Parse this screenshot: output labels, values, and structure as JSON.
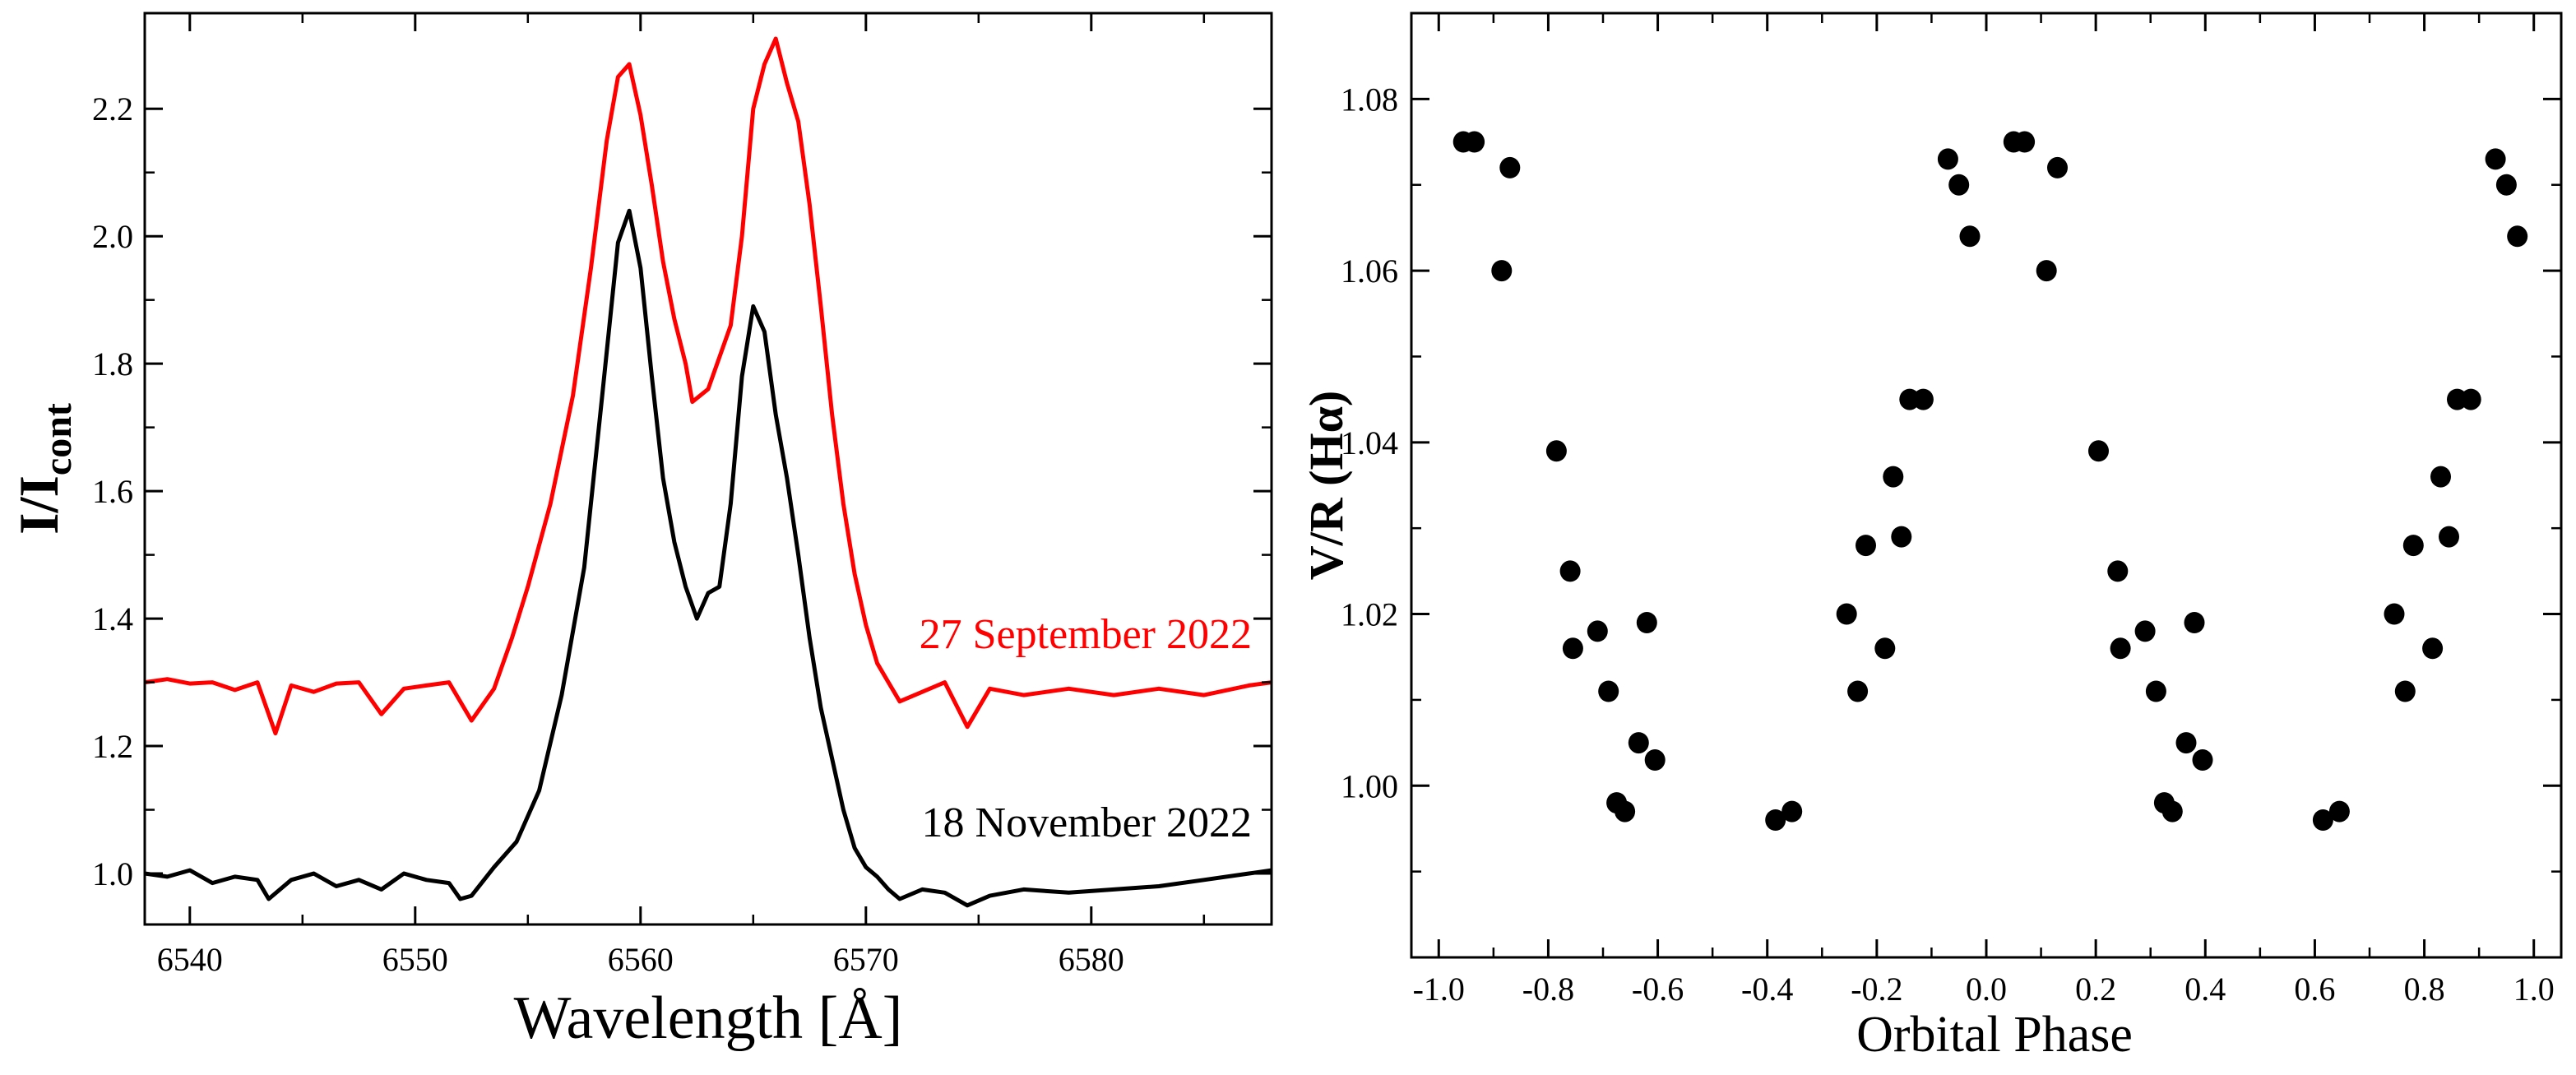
{
  "chart_data": [
    {
      "type": "line",
      "xlabel": "Wavelength [Å]",
      "ylabel_main": "I/I",
      "ylabel_sub": "cont",
      "xlim": [
        6538,
        6588
      ],
      "ylim": [
        0.92,
        2.35
      ],
      "xticks": [
        6540,
        6550,
        6560,
        6570,
        6580
      ],
      "xtick_labels": [
        "6540",
        "6550",
        "6560",
        "6570",
        "6580"
      ],
      "yticks": [
        1.0,
        1.2,
        1.4,
        1.6,
        1.8,
        2.0,
        2.2
      ],
      "ytick_labels": [
        "1.0",
        "1.2",
        "1.4",
        "1.6",
        "1.8",
        "2.0",
        "2.2"
      ],
      "grid": false,
      "series": [
        {
          "name": "27 September 2022",
          "color": "#ff0000",
          "x": [
            6538,
            6539,
            6540,
            6541,
            6542,
            6543,
            6543.8,
            6544.5,
            6545.5,
            6546.5,
            6547.5,
            6548.5,
            6549.5,
            6550.5,
            6551.5,
            6552.5,
            6553.5,
            6554.3,
            6555,
            6556,
            6557,
            6557.8,
            6558.5,
            6559,
            6559.5,
            6560,
            6560.5,
            6561,
            6561.5,
            6562,
            6562.3,
            6563,
            6564,
            6564.5,
            6565,
            6565.5,
            6566,
            6566.5,
            6567,
            6567.5,
            6568,
            6568.5,
            6569,
            6569.5,
            6570,
            6570.5,
            6571,
            6571.5,
            6572.5,
            6573.5,
            6574.5,
            6575.5,
            6577,
            6579,
            6581,
            6583,
            6585,
            6587,
            6588
          ],
          "y": [
            1.3,
            1.305,
            1.298,
            1.3,
            1.288,
            1.3,
            1.22,
            1.295,
            1.285,
            1.298,
            1.3,
            1.25,
            1.29,
            1.295,
            1.3,
            1.24,
            1.29,
            1.37,
            1.45,
            1.58,
            1.75,
            1.95,
            2.15,
            2.25,
            2.27,
            2.19,
            2.08,
            1.96,
            1.87,
            1.8,
            1.74,
            1.76,
            1.86,
            2.0,
            2.2,
            2.27,
            2.31,
            2.24,
            2.18,
            2.05,
            1.89,
            1.72,
            1.58,
            1.47,
            1.39,
            1.33,
            1.3,
            1.27,
            1.285,
            1.3,
            1.23,
            1.29,
            1.28,
            1.29,
            1.28,
            1.29,
            1.28,
            1.295,
            1.3
          ]
        },
        {
          "name": "18 November 2022",
          "color": "#000000",
          "x": [
            6538,
            6539,
            6540,
            6541,
            6542,
            6543,
            6543.5,
            6544.5,
            6545.5,
            6546.5,
            6547.5,
            6548.5,
            6549.5,
            6550.5,
            6551.5,
            6552,
            6552.5,
            6553.5,
            6554.5,
            6555.5,
            6556.5,
            6557.5,
            6558.3,
            6559,
            6559.5,
            6560,
            6560.5,
            6561,
            6561.5,
            6562,
            6562.5,
            6563,
            6563.5,
            6564,
            6564.5,
            6565,
            6565.5,
            6566,
            6566.5,
            6567,
            6567.5,
            6568,
            6568.5,
            6569,
            6569.5,
            6570,
            6570.5,
            6571,
            6571.5,
            6572.5,
            6573.5,
            6574.5,
            6575.5,
            6577,
            6579,
            6581,
            6583,
            6585,
            6587,
            6588
          ],
          "y": [
            1.0,
            0.995,
            1.005,
            0.985,
            0.995,
            0.99,
            0.96,
            0.99,
            1.0,
            0.98,
            0.99,
            0.975,
            1.0,
            0.99,
            0.985,
            0.96,
            0.965,
            1.01,
            1.05,
            1.13,
            1.28,
            1.48,
            1.75,
            1.99,
            2.04,
            1.95,
            1.78,
            1.62,
            1.52,
            1.45,
            1.4,
            1.44,
            1.45,
            1.58,
            1.78,
            1.89,
            1.85,
            1.72,
            1.62,
            1.5,
            1.37,
            1.26,
            1.18,
            1.1,
            1.04,
            1.01,
            0.995,
            0.975,
            0.96,
            0.975,
            0.97,
            0.95,
            0.965,
            0.975,
            0.97,
            0.975,
            0.98,
            0.99,
            1.0,
            1.005
          ]
        }
      ],
      "annotations": [
        {
          "text": "27 September 2022",
          "x": 6586,
          "y": 1.375,
          "color": "#ff0000"
        },
        {
          "text": "18 November 2022",
          "x": 6586,
          "y": 1.05,
          "color": "#000000"
        }
      ]
    },
    {
      "type": "scatter",
      "xlabel": "Orbital Phase",
      "ylabel": "V/R (Hα)",
      "xlim": [
        -1.05,
        1.05
      ],
      "ylim": [
        0.98,
        1.09
      ],
      "xticks": [
        -1.0,
        -0.8,
        -0.6,
        -0.4,
        -0.2,
        0.0,
        0.2,
        0.4,
        0.6,
        0.8,
        1.0
      ],
      "xtick_labels": [
        "-1.0",
        "-0.8",
        "-0.6",
        "-0.4",
        "-0.2",
        "0.0",
        "0.2",
        "0.4",
        "0.6",
        "0.8",
        "1.0"
      ],
      "yticks": [
        1.0,
        1.02,
        1.04,
        1.06,
        1.08
      ],
      "ytick_labels": [
        "1.00",
        "1.02",
        "1.04",
        "1.06",
        "1.08"
      ],
      "grid": false,
      "series": [
        {
          "color": "#000000",
          "points": [
            [
              -0.955,
              1.075
            ],
            [
              -0.935,
              1.075
            ],
            [
              -0.87,
              1.072
            ],
            [
              -0.885,
              1.06
            ],
            [
              -0.785,
              1.039
            ],
            [
              -0.76,
              1.025
            ],
            [
              -0.755,
              1.016
            ],
            [
              -0.71,
              1.018
            ],
            [
              -0.69,
              1.011
            ],
            [
              -0.675,
              0.998
            ],
            [
              -0.66,
              0.997
            ],
            [
              -0.635,
              1.005
            ],
            [
              -0.62,
              1.019
            ],
            [
              -0.605,
              1.003
            ],
            [
              -0.385,
              0.996
            ],
            [
              -0.355,
              0.997
            ],
            [
              -0.255,
              1.02
            ],
            [
              -0.235,
              1.011
            ],
            [
              -0.22,
              1.028
            ],
            [
              -0.185,
              1.016
            ],
            [
              -0.17,
              1.036
            ],
            [
              -0.155,
              1.029
            ],
            [
              -0.14,
              1.045
            ],
            [
              -0.115,
              1.045
            ],
            [
              -0.07,
              1.073
            ],
            [
              -0.05,
              1.07
            ],
            [
              -0.03,
              1.064
            ],
            [
              0.05,
              1.075
            ],
            [
              0.07,
              1.075
            ],
            [
              0.11,
              1.06
            ],
            [
              0.13,
              1.072
            ],
            [
              0.205,
              1.039
            ],
            [
              0.24,
              1.025
            ],
            [
              0.245,
              1.016
            ],
            [
              0.29,
              1.018
            ],
            [
              0.31,
              1.011
            ],
            [
              0.325,
              0.998
            ],
            [
              0.34,
              0.997
            ],
            [
              0.365,
              1.005
            ],
            [
              0.38,
              1.019
            ],
            [
              0.395,
              1.003
            ],
            [
              0.615,
              0.996
            ],
            [
              0.645,
              0.997
            ],
            [
              0.745,
              1.02
            ],
            [
              0.765,
              1.011
            ],
            [
              0.78,
              1.028
            ],
            [
              0.815,
              1.016
            ],
            [
              0.83,
              1.036
            ],
            [
              0.845,
              1.029
            ],
            [
              0.86,
              1.045
            ],
            [
              0.885,
              1.045
            ],
            [
              0.93,
              1.073
            ],
            [
              0.95,
              1.07
            ],
            [
              0.97,
              1.064
            ]
          ]
        }
      ]
    }
  ]
}
